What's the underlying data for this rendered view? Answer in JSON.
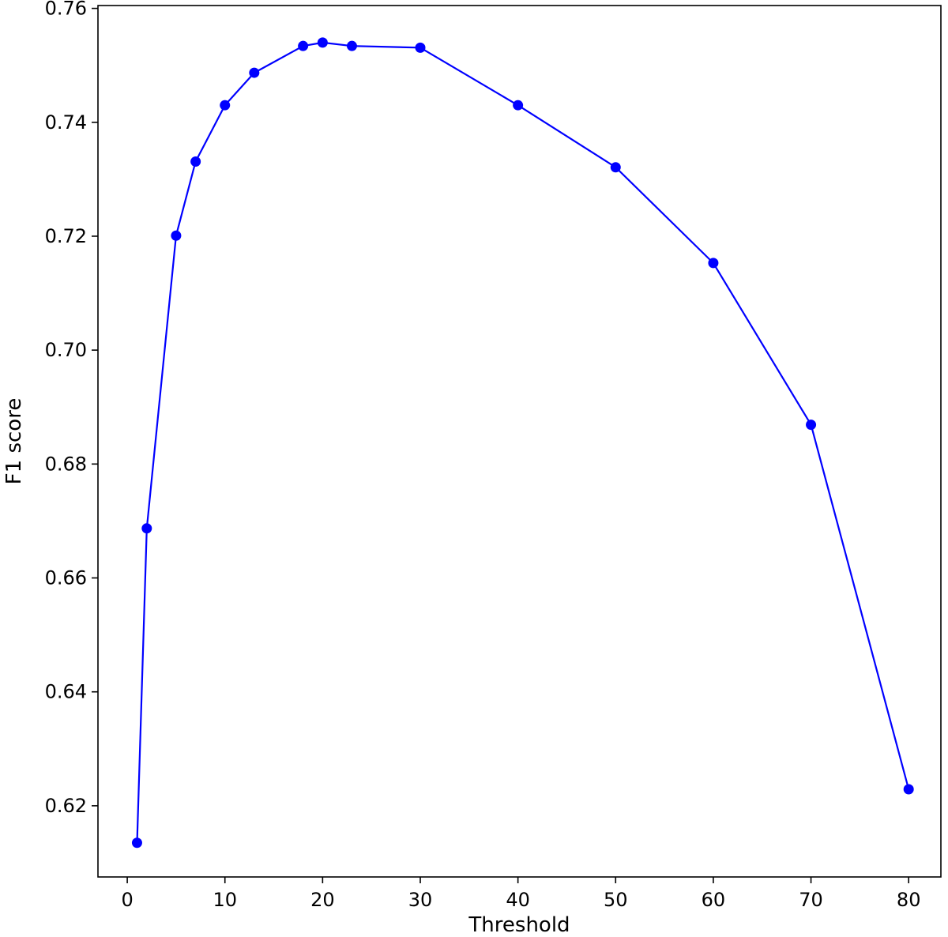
{
  "chart_data": {
    "type": "line",
    "title": "",
    "xlabel": "Threshold",
    "ylabel": "F1 score",
    "xlim": [
      -3.0,
      83.3
    ],
    "ylim": [
      0.6075,
      0.7605
    ],
    "grid": false,
    "legend": "none",
    "x_ticks": [
      0,
      10,
      20,
      30,
      40,
      50,
      60,
      70,
      80
    ],
    "x_tick_labels": [
      "0",
      "10",
      "20",
      "30",
      "40",
      "50",
      "60",
      "70",
      "80"
    ],
    "y_ticks": [
      0.62,
      0.64,
      0.66,
      0.68,
      0.7,
      0.72,
      0.74,
      0.76
    ],
    "y_tick_labels": [
      "0.62",
      "0.64",
      "0.66",
      "0.68",
      "0.70",
      "0.72",
      "0.74",
      "0.76"
    ],
    "series": [
      {
        "color": "#0000ff",
        "marker": "circle",
        "x": [
          1,
          2,
          5,
          7,
          10,
          13,
          18,
          20,
          23,
          30,
          40,
          50,
          60,
          70,
          80
        ],
        "y": [
          0.6135,
          0.6687,
          0.7201,
          0.7331,
          0.743,
          0.7487,
          0.7534,
          0.754,
          0.7534,
          0.7531,
          0.743,
          0.7321,
          0.7153,
          0.6869,
          0.6229
        ]
      }
    ]
  }
}
